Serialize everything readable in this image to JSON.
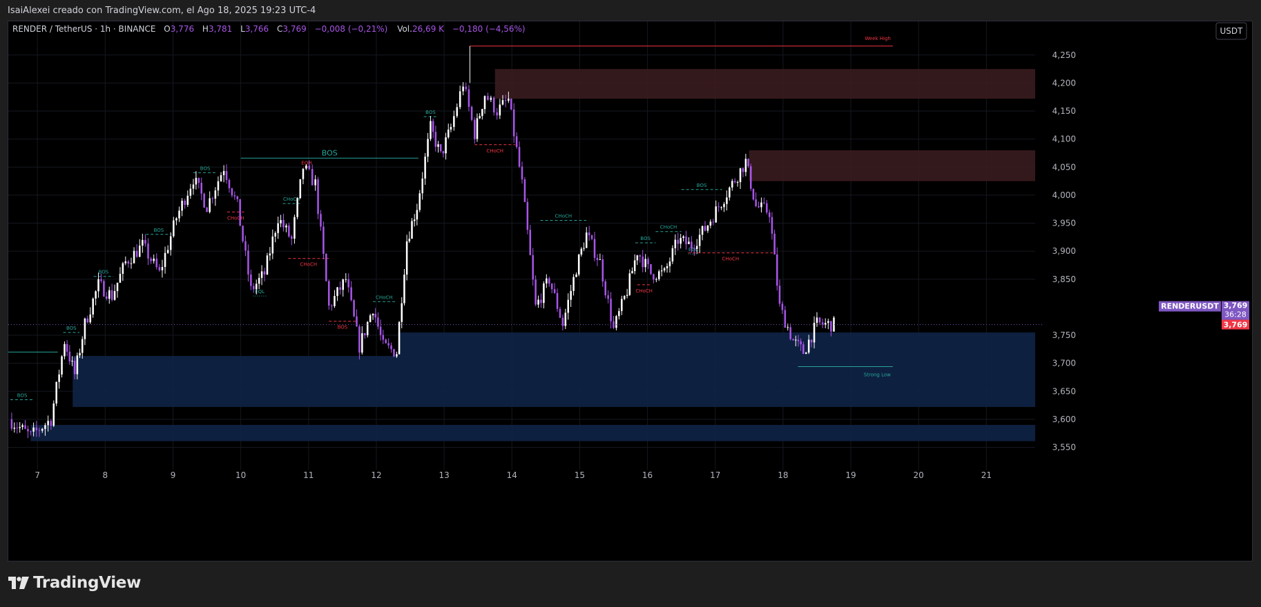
{
  "header": {
    "attribution": "IsaiAlexei creado con TradingView.com, el Ago 18, 2025 19:23 UTC-4"
  },
  "legend": {
    "symbol": "RENDER / TetherUS · 1h · BINANCE",
    "o_label": "O",
    "o_val": "3,776",
    "h_label": "H",
    "h_val": "3,781",
    "l_label": "L",
    "l_val": "3,766",
    "c_label": "C",
    "c_val": "3,769",
    "change": "−0,008 (−0,21%)",
    "vol_label": "Vol.",
    "vol_val": "26,69 K",
    "vol_change": "−0,180 (−4,56%)"
  },
  "currency_button": "USDT",
  "price_tag": {
    "symbol": "RENDERUSDT",
    "price": "3,769",
    "countdown": "36:28",
    "price_red": "3,769"
  },
  "brand": "TradingView",
  "colors": {
    "bull": "#ffffff",
    "bear": "#a855e8",
    "bos": "#26a69a",
    "choch_bear": "#f23645",
    "supply": "#3a1c1f",
    "demand": "#0f2346",
    "week_high": "#f23645",
    "strong_low": "#26a69a",
    "price_tag": "#7e57c2"
  },
  "chart_data": {
    "type": "candlestick",
    "ylim": [
      3.51,
      4.31
    ],
    "y_ticks": [
      {
        "v": 4.25,
        "label": "4,250"
      },
      {
        "v": 4.2,
        "label": "4,200"
      },
      {
        "v": 4.15,
        "label": "4,150"
      },
      {
        "v": 4.1,
        "label": "4,100"
      },
      {
        "v": 4.05,
        "label": "4,050"
      },
      {
        "v": 4.0,
        "label": "4,000"
      },
      {
        "v": 3.95,
        "label": "3,950"
      },
      {
        "v": 3.9,
        "label": "3,900"
      },
      {
        "v": 3.85,
        "label": "3,850"
      },
      {
        "v": 3.75,
        "label": "3,750"
      },
      {
        "v": 3.7,
        "label": "3,700"
      },
      {
        "v": 3.65,
        "label": "3,650"
      },
      {
        "v": 3.6,
        "label": "3,600"
      },
      {
        "v": 3.55,
        "label": "3,550"
      }
    ],
    "x_ticks": [
      {
        "day": 7,
        "label": "7"
      },
      {
        "day": 8,
        "label": "8"
      },
      {
        "day": 9,
        "label": "9"
      },
      {
        "day": 10,
        "label": "10"
      },
      {
        "day": 11,
        "label": "11"
      },
      {
        "day": 12,
        "label": "12"
      },
      {
        "day": 13,
        "label": "13"
      },
      {
        "day": 14,
        "label": "14"
      },
      {
        "day": 15,
        "label": "15"
      },
      {
        "day": 16,
        "label": "16"
      },
      {
        "day": 17,
        "label": "17"
      },
      {
        "day": 18,
        "label": "18"
      },
      {
        "day": 19,
        "label": "19"
      },
      {
        "day": 20,
        "label": "20"
      },
      {
        "day": 21,
        "label": "21"
      }
    ],
    "x_range_days": [
      6.57,
      21.72
    ],
    "current_price": 3.769,
    "path_waypoints": [
      [
        6.58,
        3.6
      ],
      [
        6.9,
        3.57
      ],
      [
        7.2,
        3.6
      ],
      [
        7.4,
        3.74
      ],
      [
        7.55,
        3.68
      ],
      [
        7.7,
        3.77
      ],
      [
        7.9,
        3.84
      ],
      [
        8.1,
        3.82
      ],
      [
        8.3,
        3.88
      ],
      [
        8.55,
        3.91
      ],
      [
        8.8,
        3.86
      ],
      [
        9.05,
        3.96
      ],
      [
        9.3,
        4.03
      ],
      [
        9.5,
        3.98
      ],
      [
        9.75,
        4.05
      ],
      [
        9.95,
        3.98
      ],
      [
        10.15,
        3.83
      ],
      [
        10.35,
        3.86
      ],
      [
        10.55,
        3.96
      ],
      [
        10.75,
        3.92
      ],
      [
        10.92,
        4.05
      ],
      [
        11.1,
        4.02
      ],
      [
        11.3,
        3.8
      ],
      [
        11.55,
        3.85
      ],
      [
        11.75,
        3.73
      ],
      [
        11.95,
        3.8
      ],
      [
        12.1,
        3.73
      ],
      [
        12.3,
        3.72
      ],
      [
        12.45,
        3.92
      ],
      [
        12.6,
        3.98
      ],
      [
        12.8,
        4.12
      ],
      [
        12.95,
        4.07
      ],
      [
        13.1,
        4.12
      ],
      [
        13.28,
        4.2
      ],
      [
        13.45,
        4.11
      ],
      [
        13.6,
        4.18
      ],
      [
        13.78,
        4.15
      ],
      [
        13.95,
        4.17
      ],
      [
        14.15,
        4.02
      ],
      [
        14.35,
        3.8
      ],
      [
        14.55,
        3.85
      ],
      [
        14.75,
        3.77
      ],
      [
        14.95,
        3.87
      ],
      [
        15.1,
        3.93
      ],
      [
        15.3,
        3.88
      ],
      [
        15.5,
        3.76
      ],
      [
        15.7,
        3.83
      ],
      [
        15.85,
        3.9
      ],
      [
        16.05,
        3.86
      ],
      [
        16.25,
        3.86
      ],
      [
        16.45,
        3.92
      ],
      [
        16.65,
        3.91
      ],
      [
        16.85,
        3.94
      ],
      [
        17.05,
        3.98
      ],
      [
        17.25,
        4.02
      ],
      [
        17.45,
        4.06
      ],
      [
        17.6,
        3.98
      ],
      [
        17.8,
        3.97
      ],
      [
        17.95,
        3.8
      ],
      [
        18.15,
        3.74
      ],
      [
        18.3,
        3.72
      ],
      [
        18.5,
        3.77
      ],
      [
        18.75,
        3.769
      ]
    ],
    "zones": [
      {
        "kind": "supply",
        "from_day": 13.75,
        "to_day": 21.72,
        "top": 4.225,
        "bottom": 4.172
      },
      {
        "kind": "supply",
        "from_day": 17.5,
        "to_day": 21.72,
        "top": 4.08,
        "bottom": 4.025
      },
      {
        "kind": "demand",
        "from_day": 12.32,
        "to_day": 21.72,
        "top": 3.755,
        "bottom": 3.712
      },
      {
        "kind": "demand",
        "from_day": 7.52,
        "to_day": 21.72,
        "top": 3.713,
        "bottom": 3.622
      },
      {
        "kind": "demand",
        "from_day": 6.9,
        "to_day": 21.72,
        "top": 3.59,
        "bottom": 3.561
      }
    ],
    "levels": [
      {
        "label": "BOS",
        "style": "dashed",
        "side": "bull",
        "from_day": 6.6,
        "to_day": 6.95,
        "price": 3.635
      },
      {
        "label": "BOS",
        "style": "dashed",
        "side": "bull",
        "from_day": 7.38,
        "to_day": 7.62,
        "price": 3.755
      },
      {
        "label": "BOS",
        "style": "dashed",
        "side": "bull",
        "from_day": 7.83,
        "to_day": 8.12,
        "price": 3.855
      },
      {
        "label": "BOS",
        "style": "dashed",
        "side": "bull",
        "from_day": 8.6,
        "to_day": 8.98,
        "price": 3.93
      },
      {
        "label": "BOS",
        "style": "dashed",
        "side": "bull",
        "from_day": 9.3,
        "to_day": 9.65,
        "price": 4.04
      },
      {
        "label": "BOS",
        "style": "solid",
        "side": "bull",
        "from_day": 10.0,
        "to_day": 12.62,
        "price": 4.066,
        "large": true
      },
      {
        "label": "CHoCH",
        "style": "dashed",
        "side": "bear",
        "from_day": 9.8,
        "to_day": 10.05,
        "price": 3.97
      },
      {
        "label": "EQH",
        "style": "dotted",
        "side": "bear",
        "from_day": 10.92,
        "to_day": 11.02,
        "price": 4.05
      },
      {
        "label": "CHoCH",
        "style": "dashed",
        "side": "bull",
        "from_day": 10.62,
        "to_day": 10.88,
        "price": 3.985
      },
      {
        "label": "EQL",
        "style": "dotted",
        "side": "bull",
        "from_day": 10.18,
        "to_day": 10.38,
        "price": 3.82
      },
      {
        "label": "CHoCH",
        "style": "dashed",
        "side": "bear",
        "from_day": 10.7,
        "to_day": 11.3,
        "price": 3.887
      },
      {
        "label": "BOS",
        "style": "dashed",
        "side": "bear",
        "from_day": 11.3,
        "to_day": 11.7,
        "price": 3.775
      },
      {
        "label": "CHoCH",
        "style": "dashed",
        "side": "bull",
        "from_day": 11.95,
        "to_day": 12.28,
        "price": 3.81
      },
      {
        "label": "BOS",
        "style": "dashed",
        "side": "bull",
        "from_day": 12.7,
        "to_day": 12.9,
        "price": 4.14
      },
      {
        "label": "CHoCH",
        "style": "dashed",
        "side": "bear",
        "from_day": 13.45,
        "to_day": 14.05,
        "price": 4.09
      },
      {
        "label": "CHoCH",
        "style": "dashed",
        "side": "bull",
        "from_day": 14.42,
        "to_day": 15.1,
        "price": 3.955
      },
      {
        "label": "BOS",
        "style": "dashed",
        "side": "bull",
        "from_day": 15.82,
        "to_day": 16.12,
        "price": 3.915
      },
      {
        "label": "CHoCH",
        "style": "dashed",
        "side": "bear",
        "from_day": 15.85,
        "to_day": 16.05,
        "price": 3.84
      },
      {
        "label": "CHoCH",
        "style": "dashed",
        "side": "bull",
        "from_day": 16.12,
        "to_day": 16.5,
        "price": 3.935
      },
      {
        "label": "BOS",
        "style": "dashed",
        "side": "bull",
        "from_day": 16.5,
        "to_day": 17.1,
        "price": 4.01
      },
      {
        "label": "EQL",
        "style": "dotted",
        "side": "bull",
        "from_day": 16.6,
        "to_day": 16.75,
        "price": 3.895
      },
      {
        "label": "CHoCH",
        "style": "dashed",
        "side": "bear",
        "from_day": 16.6,
        "to_day": 17.85,
        "price": 3.897
      }
    ],
    "week_high": {
      "label": "Week High",
      "from_day": 13.38,
      "to_day": 19.62,
      "price": 4.266
    },
    "strong_low": {
      "label": "Strong Low",
      "from_day": 18.22,
      "to_day": 19.62,
      "price": 3.694
    },
    "left_level": {
      "from_day": 6.57,
      "to_day": 7.3,
      "price": 3.72
    }
  }
}
